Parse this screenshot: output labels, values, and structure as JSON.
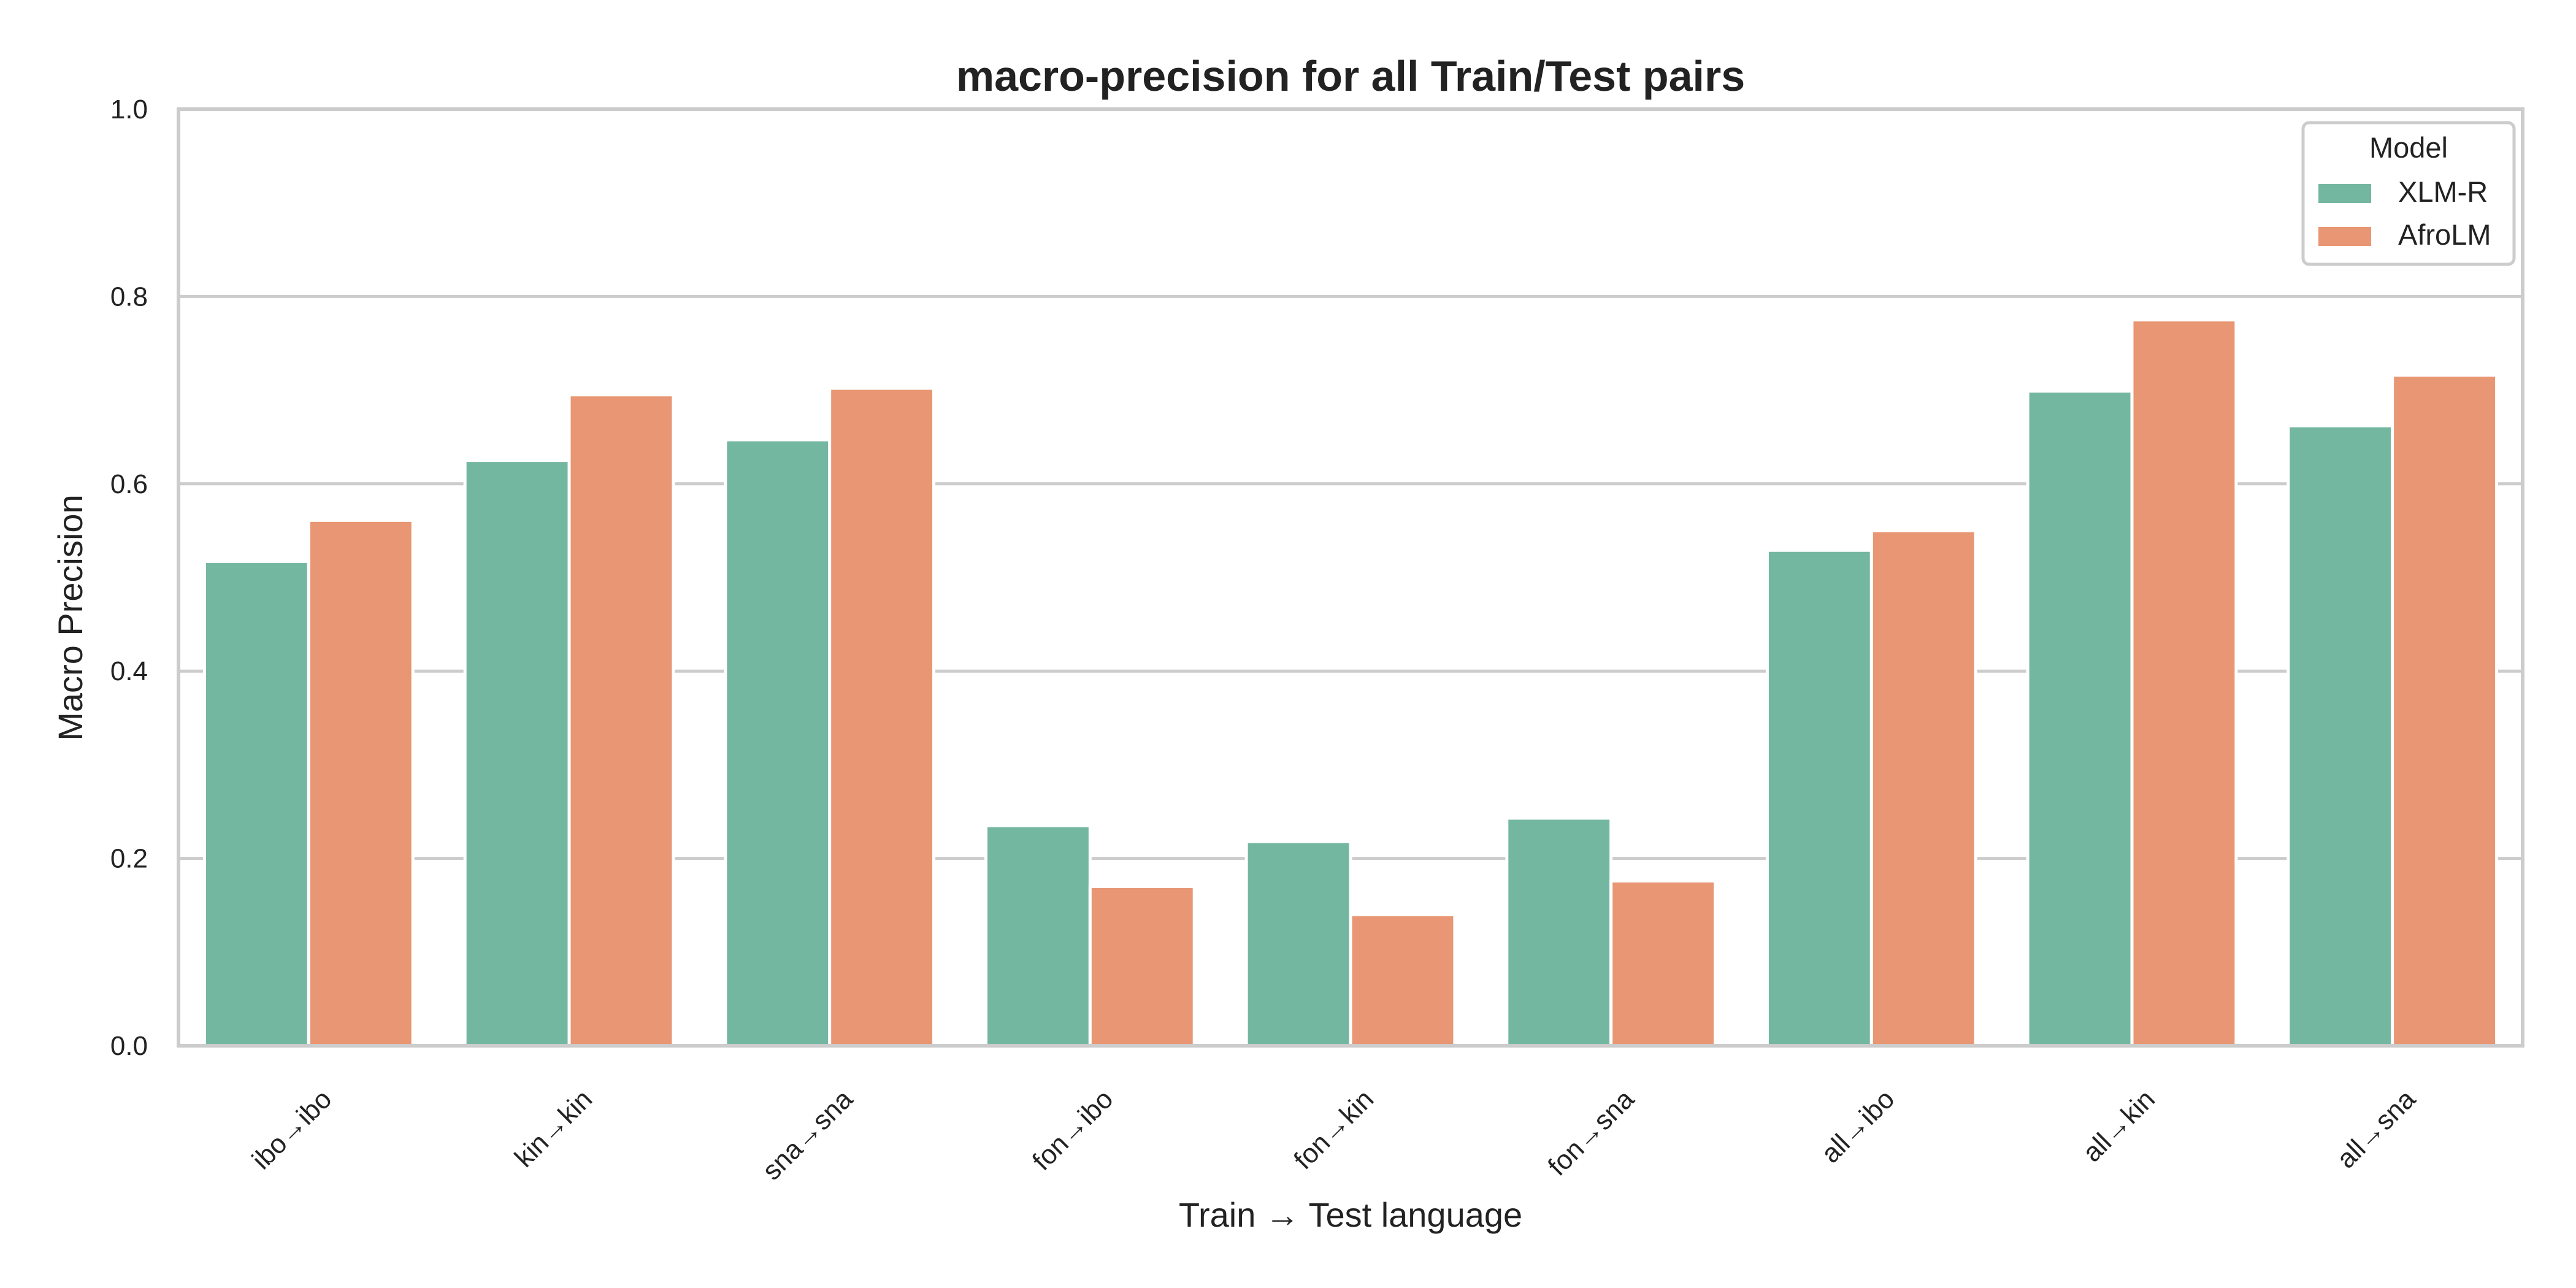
{
  "chart_data": {
    "type": "bar",
    "title": "macro-precision for all Train/Test pairs",
    "xlabel": "Train → Test language",
    "ylabel": "Macro Precision",
    "ylim": [
      0,
      1.0
    ],
    "yticks": [
      "0.0",
      "0.2",
      "0.4",
      "0.6",
      "0.8",
      "1.0"
    ],
    "grid": "horizontal",
    "categories": [
      "ibo→ibo",
      "kin→kin",
      "sna→sna",
      "fon→ibo",
      "fon→kin",
      "fon→sna",
      "all→ibo",
      "all→kin",
      "all→sna"
    ],
    "series": [
      {
        "name": "XLM-R",
        "color": "#74b7a0",
        "values": [
          0.517,
          0.625,
          0.647,
          0.235,
          0.218,
          0.243,
          0.529,
          0.699,
          0.662
        ]
      },
      {
        "name": "AfroLM",
        "color": "#e89673",
        "values": [
          0.561,
          0.695,
          0.702,
          0.17,
          0.14,
          0.176,
          0.55,
          0.775,
          0.716
        ]
      }
    ],
    "legend": {
      "title": "Model",
      "position": "top-right"
    }
  },
  "colors": {
    "grid": "#cccccc",
    "frame": "#cccccc",
    "text": "#222222"
  }
}
